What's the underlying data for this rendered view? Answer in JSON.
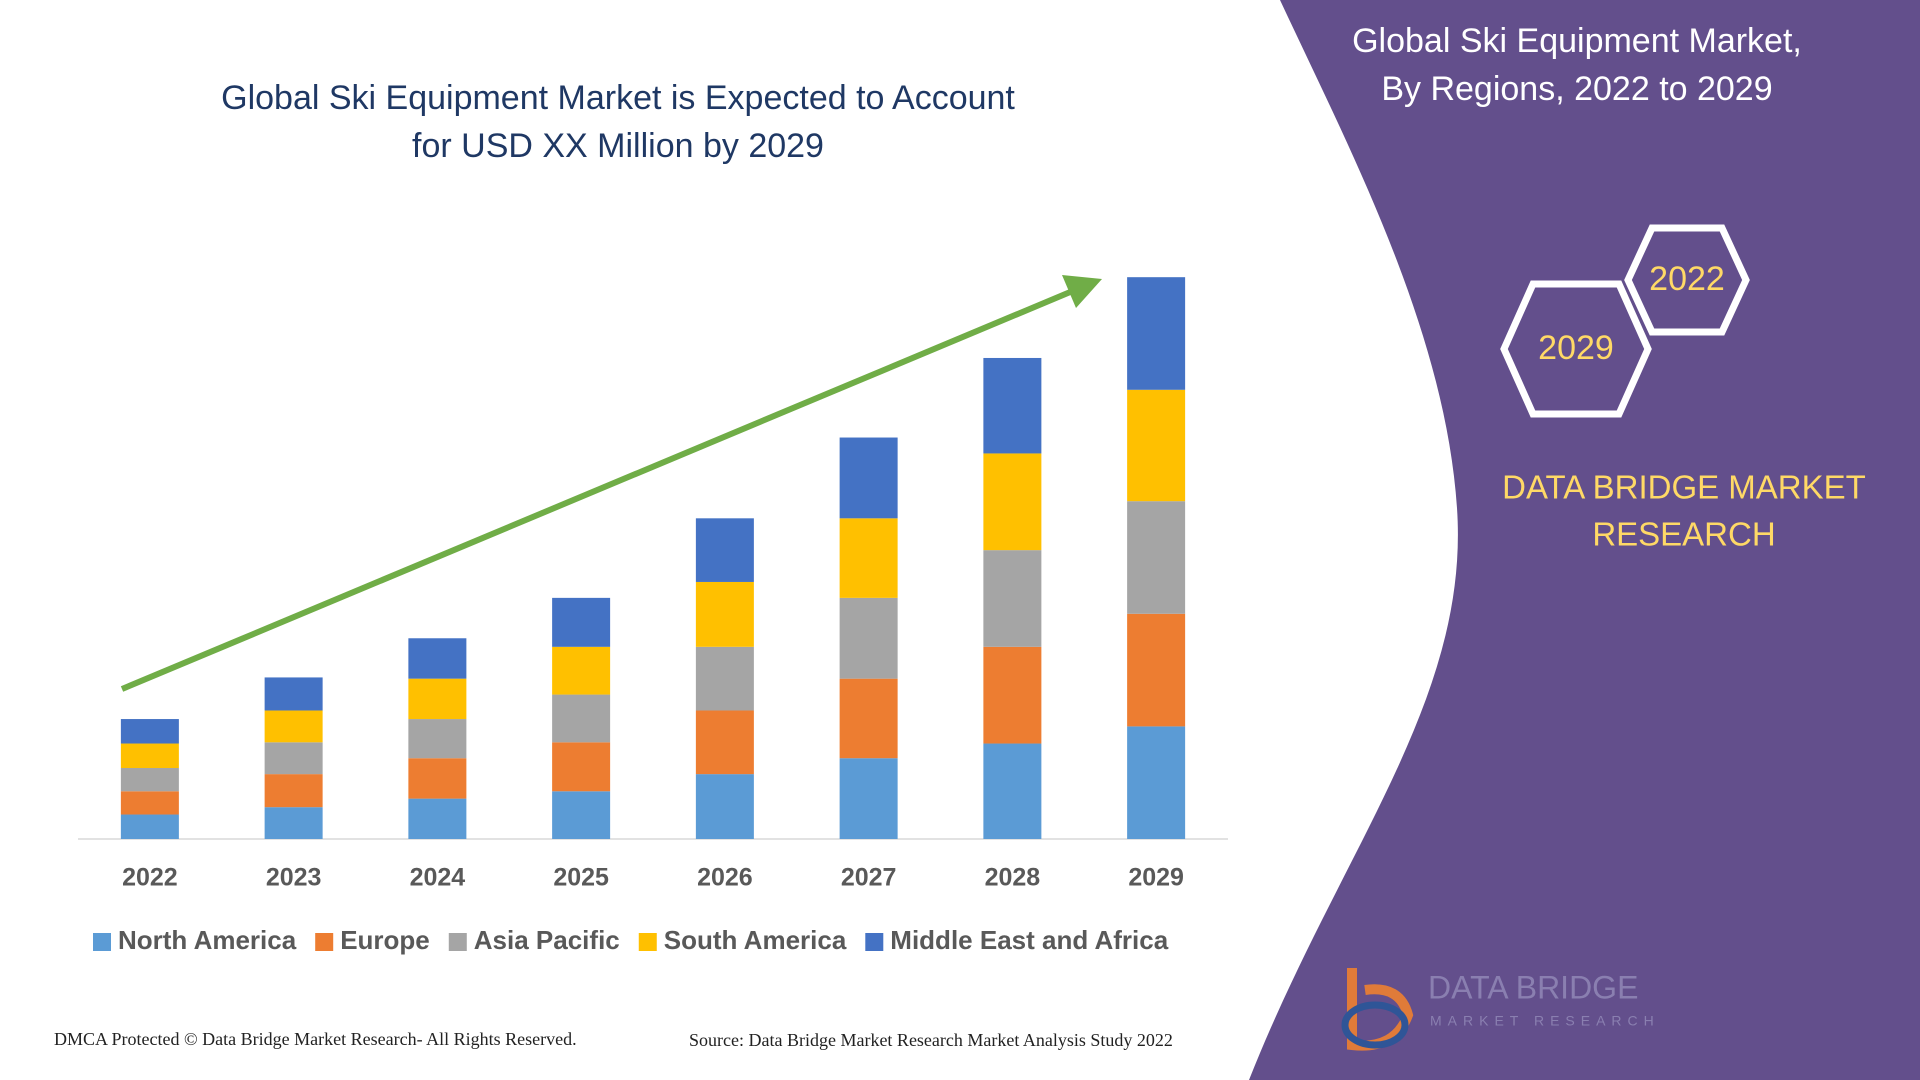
{
  "chart_data": {
    "type": "bar",
    "stacked": true,
    "title": [
      "Global Ski Equipment Market is Expected to Account",
      "for USD XX Million by 2029"
    ],
    "categories": [
      "2022",
      "2023",
      "2024",
      "2025",
      "2026",
      "2027",
      "2028",
      "2029"
    ],
    "series": [
      {
        "name": "North America",
        "color": "#5b9bd5",
        "values": [
          20,
          26,
          33,
          39,
          53,
          66,
          78,
          92
        ]
      },
      {
        "name": "Europe",
        "color": "#ed7d31",
        "values": [
          19,
          27,
          33,
          40,
          52,
          65,
          79,
          92
        ]
      },
      {
        "name": "Asia Pacific",
        "color": "#a5a5a5",
        "values": [
          19,
          26,
          32,
          39,
          52,
          66,
          79,
          92
        ]
      },
      {
        "name": "South America",
        "color": "#ffc000",
        "values": [
          20,
          26,
          33,
          39,
          53,
          65,
          79,
          91
        ]
      },
      {
        "name": "Middle East and Africa",
        "color": "#4472c4",
        "values": [
          20,
          27,
          33,
          40,
          52,
          66,
          78,
          92
        ]
      }
    ],
    "ylim": [
      0,
      500
    ],
    "grid": false,
    "legend": "bottom",
    "footer_left": "DMCA Protected © Data Bridge Market Research- All Rights Reserved.",
    "footer_right": "Source: Data Bridge Market Research Market Analysis Study 2022"
  },
  "panel": {
    "title": [
      "Global Ski Equipment Market,",
      "By Regions, 2022 to 2029"
    ],
    "hexagons": [
      "2022",
      "2029"
    ],
    "brand": [
      "DATA BRIDGE MARKET",
      "RESEARCH"
    ],
    "logo": [
      "DATA BRIDGE",
      "MARKET RESEARCH"
    ]
  }
}
